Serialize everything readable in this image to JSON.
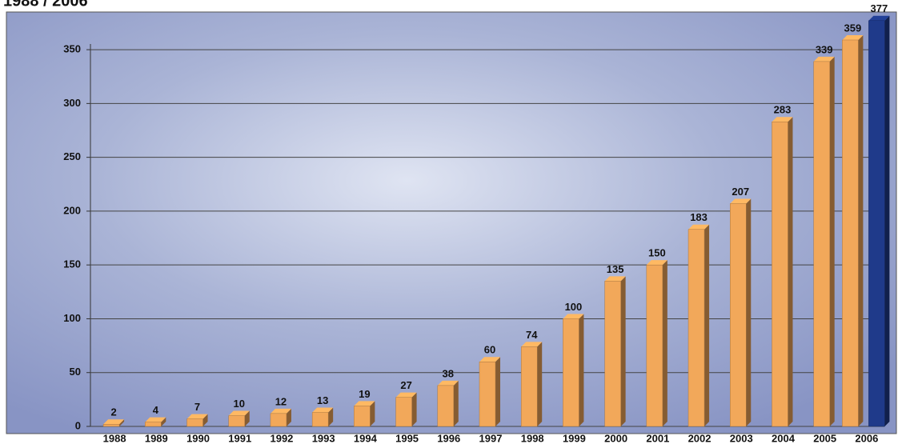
{
  "chart_data": {
    "type": "bar",
    "title": "1988 / 2006",
    "categories": [
      "1988",
      "1989",
      "1990",
      "1991",
      "1992",
      "1993",
      "1994",
      "1995",
      "1996",
      "1997",
      "1998",
      "1999",
      "2000",
      "2001",
      "2002",
      "2003",
      "2004",
      "2005",
      "2006"
    ],
    "series": [
      {
        "color": "#f2a85a",
        "values": [
          2,
          4,
          7,
          10,
          12,
          13,
          19,
          27,
          38,
          60,
          74,
          100,
          135,
          150,
          183,
          207,
          283,
          339,
          359
        ]
      },
      {
        "color": "#1f3a8a",
        "values": [
          null,
          null,
          null,
          null,
          null,
          null,
          null,
          null,
          null,
          null,
          null,
          null,
          null,
          null,
          null,
          null,
          null,
          null,
          377
        ]
      }
    ],
    "ylim": [
      0,
      385
    ],
    "yticks": [
      0,
      50,
      100,
      150,
      200,
      250,
      300,
      350
    ],
    "grid": true
  }
}
